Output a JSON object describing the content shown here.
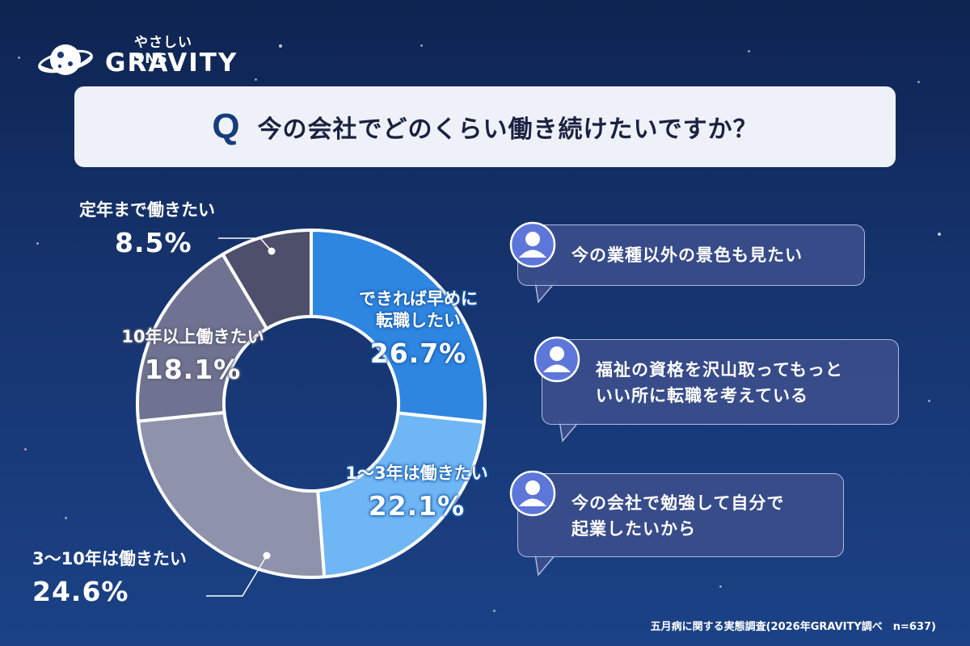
{
  "logo": {
    "tagline": "やさしいSNS",
    "brand": "GRAVITY"
  },
  "question": {
    "mark": "Q",
    "text": "今の会社でどのくらい働き続けたいですか？"
  },
  "chart_data": {
    "type": "pie",
    "categories": [
      "できれば早めに転職したい",
      "1〜3年は働きたい",
      "3〜10年は働きたい",
      "10年以上働きたい",
      "定年まで働きたい"
    ],
    "values": [
      26.7,
      22.1,
      24.6,
      18.1,
      8.5
    ],
    "unit": "%",
    "donut": true,
    "slices": [
      {
        "id": "early",
        "label_lines": [
          "できれば早めに",
          "転職したい"
        ],
        "value": 26.7,
        "display": "26.7%",
        "color": "#2f86e0"
      },
      {
        "id": "one-three",
        "label_lines": [
          "1〜3年は働きたい"
        ],
        "value": 22.1,
        "display": "22.1%",
        "color": "#6fb6f4"
      },
      {
        "id": "three-ten",
        "label_lines": [
          "3〜10年は働きたい"
        ],
        "value": 24.6,
        "display": "24.6%",
        "color": "#8f92ab"
      },
      {
        "id": "ten-plus",
        "label_lines": [
          "10年以上働きたい"
        ],
        "value": 18.1,
        "display": "18.1%",
        "color": "#6f7290"
      },
      {
        "id": "retire",
        "label_lines": [
          "定年まで働きたい"
        ],
        "value": 8.5,
        "display": "8.5%",
        "color": "#4e4f6b"
      }
    ]
  },
  "comments": [
    {
      "lines": [
        "今の業種以外の景色も見たい"
      ]
    },
    {
      "lines": [
        "福祉の資格を沢山取ってもっと",
        "いい所に転職を考えている"
      ]
    },
    {
      "lines": [
        "今の会社で勉強して自分で",
        "起業したいから"
      ]
    }
  ],
  "icons": {
    "logo": "planet-icon",
    "avatar": "user-avatar-icon"
  },
  "footnote": "五月病に関する実態調査(2026年GRAVITY調べ　n=637)"
}
